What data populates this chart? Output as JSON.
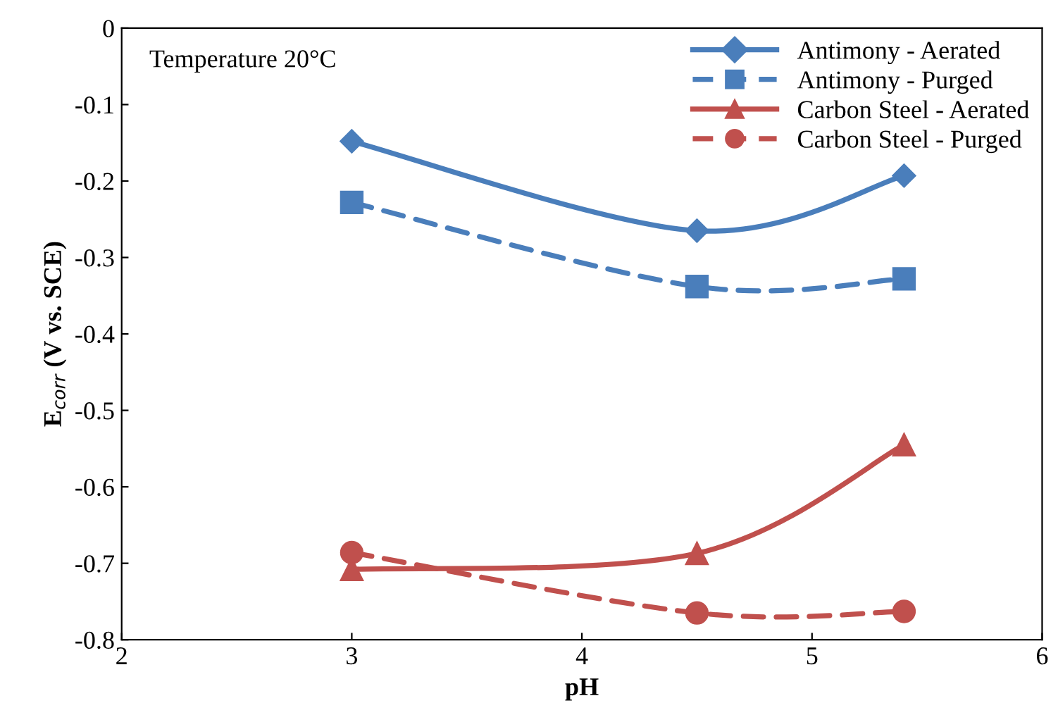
{
  "chart_data": {
    "type": "line",
    "xlabel": "pH",
    "ylabel": "E$_{corr}$ (V vs. SCE)",
    "x": [
      3,
      4.5,
      5.4
    ],
    "series": [
      {
        "name": "Antimony - Aerated",
        "color": "#4a7ebb",
        "values": [
          -0.148,
          -0.265,
          -0.193
        ],
        "marker": "diamond",
        "line_style": "solid"
      },
      {
        "name": "Antimony - Purged",
        "color": "#4a7ebb",
        "values": [
          -0.228,
          -0.338,
          -0.328
        ],
        "marker": "square",
        "line_style": "dashed"
      },
      {
        "name": "Carbon Steel - Aerated",
        "color": "#c0504d",
        "values": [
          -0.708,
          -0.687,
          -0.545
        ],
        "marker": "triangle",
        "line_style": "solid"
      },
      {
        "name": "Carbon Steel - Purged",
        "color": "#c0504d",
        "values": [
          -0.686,
          -0.765,
          -0.763
        ],
        "marker": "circle",
        "line_style": "dashed"
      }
    ],
    "xlim": [
      2,
      6
    ],
    "xticks": [
      2,
      3,
      4,
      5,
      6
    ],
    "ylim": [
      -0.8,
      0
    ],
    "yticks": [
      0,
      {
        "value": -0.1,
        "label": "-0.1"
      },
      {
        "value": -0.2,
        "label": "-0.2"
      },
      {
        "value": -0.3,
        "label": "-0.3"
      },
      {
        "value": -0.4,
        "label": "-0.4"
      },
      {
        "value": -0.5,
        "label": "-0.5"
      },
      {
        "value": -0.6,
        "label": "-0.6"
      },
      {
        "value": -0.7,
        "label": "-0.7"
      },
      {
        "value": -0.8,
        "label": "-0.8"
      }
    ],
    "annotations": [
      "Temperature 20°C"
    ],
    "grid": false,
    "legend": "top right"
  }
}
